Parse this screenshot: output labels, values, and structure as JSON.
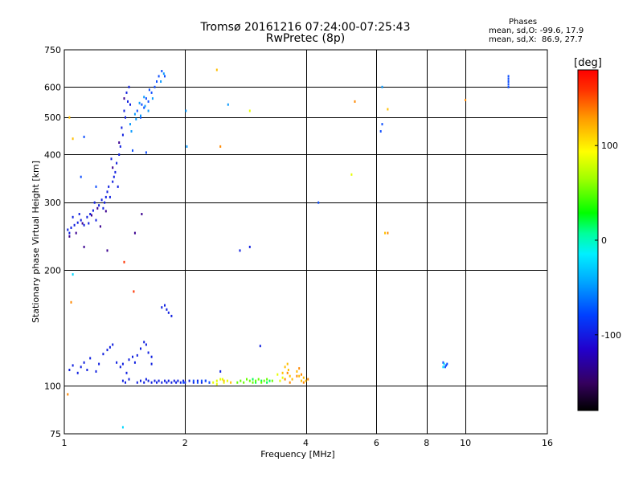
{
  "chart_data": {
    "type": "scatter",
    "title": "Tromsø 20161216 07:24:00-07:25:43",
    "subtitle": "RwPretec (8p)",
    "xlabel": "Frequency [MHz]",
    "ylabel": "Stationary phase Virtual Height [km]",
    "x_scale": "log",
    "y_scale": "log",
    "xlim": [
      1,
      16
    ],
    "ylim": [
      75,
      750
    ],
    "x_ticks": [
      1,
      2,
      4,
      6,
      8,
      10,
      16
    ],
    "x_tick_labels": [
      "1",
      "2",
      "4",
      "6",
      "8",
      "10",
      "16"
    ],
    "y_ticks": [
      75,
      100,
      200,
      300,
      400,
      500,
      600,
      750
    ],
    "y_tick_labels": [
      "75",
      "100",
      "200",
      "300",
      "400",
      "500",
      "600",
      "750"
    ],
    "grid": true,
    "phases_box": {
      "heading": "Phases",
      "line_o": "mean, sd,O: -99.6, 17.9",
      "line_x": "mean, sd,X:  86.9, 27.7"
    },
    "colorbar": {
      "label": "[deg]",
      "range": [
        -180,
        180
      ],
      "ticks": [
        100,
        0,
        -100
      ],
      "tick_labels": [
        "100",
        "0",
        "-100"
      ]
    },
    "colors": {
      "c-150": "#3a0090",
      "c-120": "#1020e0",
      "c-100": "#1050ff",
      "c-80": "#0b9bff",
      "c-60": "#00d7ff",
      "c-20": "#00ff55",
      "c40": "#66ff00",
      "c80": "#e6ff00",
      "c110": "#ffbf00",
      "c130": "#ff8800",
      "c160": "#ff3300"
    },
    "series": [
      {
        "color_key": "c-120",
        "points": [
          [
            1.02,
            255
          ],
          [
            1.04,
            258
          ],
          [
            1.06,
            262
          ],
          [
            1.03,
            250
          ],
          [
            1.08,
            266
          ],
          [
            1.1,
            270
          ],
          [
            1.12,
            262
          ],
          [
            1.14,
            275
          ],
          [
            1.16,
            280
          ],
          [
            1.18,
            286
          ],
          [
            1.2,
            270
          ],
          [
            1.22,
            295
          ],
          [
            1.24,
            305
          ],
          [
            1.26,
            300
          ],
          [
            1.28,
            320
          ],
          [
            1.3,
            310
          ],
          [
            1.32,
            340
          ],
          [
            1.34,
            360
          ],
          [
            1.35,
            380
          ],
          [
            1.37,
            400
          ],
          [
            1.38,
            420
          ],
          [
            1.4,
            450
          ],
          [
            1.42,
            500
          ],
          [
            1.44,
            550
          ],
          [
            1.45,
            600
          ],
          [
            1.43,
            580
          ],
          [
            1.25,
            290
          ],
          [
            1.27,
            310
          ],
          [
            1.33,
            350
          ],
          [
            1.36,
            330
          ],
          [
            1.15,
            265
          ],
          [
            1.05,
            275
          ],
          [
            1.09,
            280
          ],
          [
            1.19,
            300
          ],
          [
            1.29,
            330
          ],
          [
            1.31,
            390
          ],
          [
            1.39,
            470
          ],
          [
            1.41,
            520
          ],
          [
            1.46,
            540
          ]
        ]
      },
      {
        "color_key": "c-150",
        "points": [
          [
            1.03,
            245
          ],
          [
            1.07,
            250
          ],
          [
            1.11,
            265
          ],
          [
            1.17,
            278
          ],
          [
            1.21,
            290
          ],
          [
            1.23,
            260
          ],
          [
            1.27,
            285
          ],
          [
            1.32,
            370
          ],
          [
            1.37,
            430
          ],
          [
            1.41,
            560
          ],
          [
            1.28,
            225
          ],
          [
            1.12,
            230
          ],
          [
            1.5,
            250
          ],
          [
            1.56,
            280
          ]
        ]
      },
      {
        "color_key": "c-100",
        "points": [
          [
            1.52,
            520
          ],
          [
            1.56,
            540
          ],
          [
            1.6,
            560
          ],
          [
            1.63,
            590
          ],
          [
            1.68,
            600
          ],
          [
            1.72,
            640
          ],
          [
            1.75,
            660
          ],
          [
            1.78,
            640
          ],
          [
            1.55,
            500
          ],
          [
            1.58,
            530
          ],
          [
            1.62,
            550
          ],
          [
            1.65,
            580
          ],
          [
            1.7,
            620
          ],
          [
            1.12,
            445
          ],
          [
            1.1,
            350
          ],
          [
            1.2,
            330
          ],
          [
            1.48,
            410
          ],
          [
            1.6,
            405
          ]
        ]
      },
      {
        "color_key": "c-80",
        "points": [
          [
            1.46,
            480
          ],
          [
            1.5,
            510
          ],
          [
            1.54,
            545
          ],
          [
            1.58,
            565
          ],
          [
            1.62,
            520
          ],
          [
            1.66,
            560
          ],
          [
            1.74,
            620
          ],
          [
            1.77,
            650
          ],
          [
            1.47,
            460
          ],
          [
            1.51,
            495
          ],
          [
            1.55,
            505
          ],
          [
            1.59,
            535
          ],
          [
            2.02,
            420
          ],
          [
            2.01,
            520
          ],
          [
            2.56,
            540
          ],
          [
            6.2,
            600
          ]
        ]
      },
      {
        "color_key": "c-120",
        "points": [
          [
            1.03,
            110
          ],
          [
            1.05,
            113
          ],
          [
            1.08,
            108
          ],
          [
            1.1,
            112
          ],
          [
            1.12,
            115
          ],
          [
            1.14,
            110
          ],
          [
            1.16,
            118
          ],
          [
            1.2,
            109
          ],
          [
            1.22,
            114
          ],
          [
            1.25,
            121
          ],
          [
            1.28,
            124
          ],
          [
            1.3,
            126
          ],
          [
            1.32,
            128
          ],
          [
            1.35,
            115
          ],
          [
            1.38,
            112
          ],
          [
            1.4,
            114
          ],
          [
            1.43,
            108
          ],
          [
            1.45,
            117
          ],
          [
            1.48,
            119
          ],
          [
            1.5,
            115
          ],
          [
            1.52,
            120
          ],
          [
            1.55,
            125
          ],
          [
            1.58,
            130
          ],
          [
            1.6,
            128
          ],
          [
            1.62,
            122
          ],
          [
            1.65,
            119
          ],
          [
            1.75,
            160
          ],
          [
            1.78,
            162
          ],
          [
            1.8,
            158
          ],
          [
            1.82,
            155
          ],
          [
            1.85,
            152
          ],
          [
            1.52,
            102
          ],
          [
            1.55,
            103
          ],
          [
            1.58,
            102
          ],
          [
            1.6,
            104
          ],
          [
            1.62,
            103
          ],
          [
            1.65,
            102
          ],
          [
            1.68,
            103
          ],
          [
            1.7,
            102
          ],
          [
            1.72,
            103
          ],
          [
            1.75,
            102
          ],
          [
            1.78,
            103
          ],
          [
            1.8,
            102
          ],
          [
            1.82,
            103
          ],
          [
            1.85,
            102
          ],
          [
            1.88,
            103
          ],
          [
            1.9,
            102
          ],
          [
            1.92,
            103
          ],
          [
            1.95,
            102
          ],
          [
            1.98,
            103
          ],
          [
            2.0,
            102
          ],
          [
            2.05,
            103
          ],
          [
            2.1,
            102
          ],
          [
            2.15,
            103
          ],
          [
            2.2,
            102
          ],
          [
            2.25,
            103
          ],
          [
            2.3,
            102
          ],
          [
            1.4,
            103
          ],
          [
            1.42,
            102
          ],
          [
            1.45,
            104
          ],
          [
            2.74,
            225
          ],
          [
            2.9,
            230
          ],
          [
            2.45,
            109
          ],
          [
            3.08,
            127
          ],
          [
            1.65,
            114
          ]
        ]
      },
      {
        "color_key": "c-100",
        "points": [
          [
            2.1,
            103
          ],
          [
            2.15,
            102
          ],
          [
            2.2,
            103
          ],
          [
            2.25,
            103
          ],
          [
            2.3,
            102
          ],
          [
            1.98,
            102
          ],
          [
            8.8,
            115
          ],
          [
            8.9,
            112
          ],
          [
            9.0,
            114
          ],
          [
            8.95,
            113
          ],
          [
            4.3,
            300
          ],
          [
            6.2,
            480
          ],
          [
            6.15,
            460
          ],
          [
            12.8,
            600
          ],
          [
            12.8,
            610
          ],
          [
            12.8,
            620
          ],
          [
            12.8,
            630
          ],
          [
            12.8,
            640
          ]
        ]
      },
      {
        "color_key": "c-60",
        "points": [
          [
            1.05,
            195
          ],
          [
            1.4,
            78
          ],
          [
            8.8,
            112
          ],
          [
            8.85,
            114
          ]
        ]
      },
      {
        "color_key": "c-20",
        "points": [
          [
            3.0,
            102
          ],
          [
            3.1,
            103
          ],
          [
            3.2,
            102
          ],
          [
            3.25,
            103
          ],
          [
            2.95,
            104
          ]
        ]
      },
      {
        "color_key": "c40",
        "points": [
          [
            2.7,
            102
          ],
          [
            2.75,
            103
          ],
          [
            2.8,
            102
          ],
          [
            2.85,
            104
          ],
          [
            2.9,
            103
          ],
          [
            2.95,
            102
          ],
          [
            3.0,
            103
          ],
          [
            3.05,
            104
          ],
          [
            3.1,
            102
          ],
          [
            3.15,
            103
          ],
          [
            3.2,
            104
          ],
          [
            3.3,
            103
          ]
        ]
      },
      {
        "color_key": "c80",
        "points": [
          [
            2.35,
            102
          ],
          [
            2.4,
            103
          ],
          [
            2.45,
            104
          ],
          [
            2.5,
            102
          ],
          [
            2.55,
            103
          ],
          [
            2.4,
            101
          ],
          [
            2.48,
            104
          ],
          [
            3.4,
            107
          ],
          [
            3.5,
            105
          ],
          [
            3.45,
            103
          ],
          [
            2.9,
            520
          ],
          [
            5.2,
            355
          ]
        ]
      },
      {
        "color_key": "c110",
        "points": [
          [
            2.4,
            665
          ],
          [
            2.5,
            103
          ],
          [
            2.6,
            102
          ],
          [
            3.6,
            114
          ],
          [
            3.62,
            110
          ],
          [
            3.65,
            106
          ],
          [
            3.7,
            104
          ],
          [
            3.8,
            109
          ],
          [
            3.85,
            106
          ],
          [
            3.9,
            103
          ],
          [
            3.95,
            105
          ],
          [
            4.0,
            103
          ],
          [
            3.5,
            108
          ],
          [
            3.55,
            112
          ],
          [
            1.03,
            500
          ],
          [
            1.05,
            440
          ],
          [
            6.4,
            525
          ],
          [
            6.3,
            250
          ]
        ]
      },
      {
        "color_key": "c130",
        "points": [
          [
            3.55,
            104
          ],
          [
            3.6,
            108
          ],
          [
            3.65,
            102
          ],
          [
            3.8,
            106
          ],
          [
            3.85,
            111
          ],
          [
            3.9,
            107
          ],
          [
            3.95,
            102
          ],
          [
            4.05,
            104
          ],
          [
            5.3,
            550
          ],
          [
            10.0,
            555
          ],
          [
            2.45,
            420
          ],
          [
            1.02,
            95
          ],
          [
            1.04,
            165
          ],
          [
            6.4,
            250
          ]
        ]
      },
      {
        "color_key": "c160",
        "points": [
          [
            1.41,
            210
          ],
          [
            1.49,
            176
          ]
        ]
      }
    ]
  }
}
